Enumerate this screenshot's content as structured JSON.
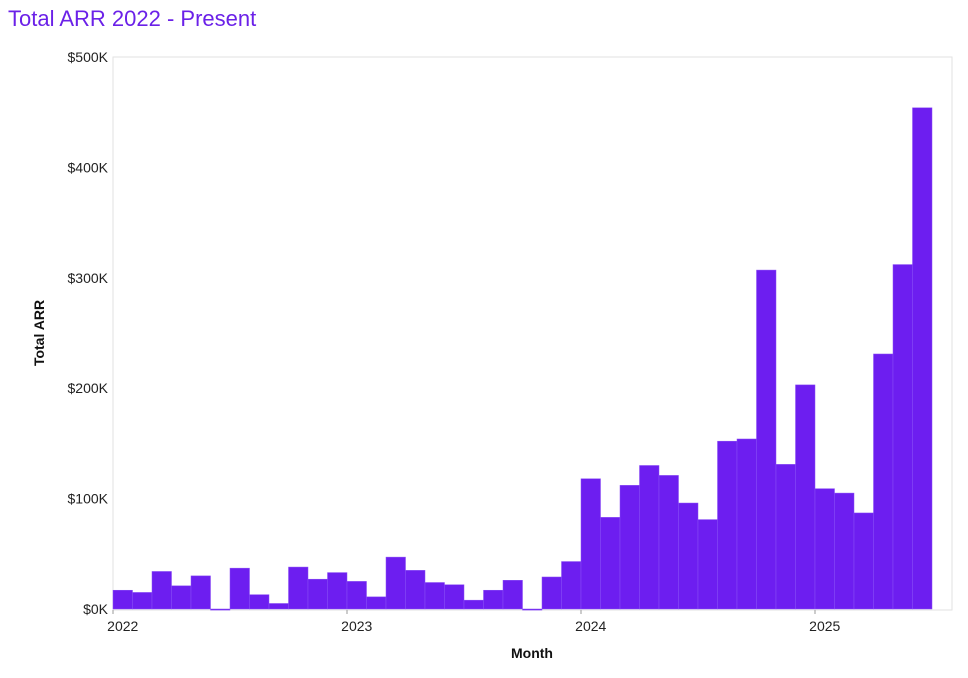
{
  "chart_data": {
    "type": "bar",
    "title": "Total ARR 2022 - Present",
    "xlabel": "Month",
    "ylabel": "Total ARR",
    "ylim": [
      0,
      500000
    ],
    "x_start": "2022-01",
    "x_end": "2025-07",
    "y_ticks": [
      {
        "value": 0,
        "label": "$0K"
      },
      {
        "value": 100000,
        "label": "$100K"
      },
      {
        "value": 200000,
        "label": "$200K"
      },
      {
        "value": 300000,
        "label": "$300K"
      },
      {
        "value": 400000,
        "label": "$400K"
      },
      {
        "value": 500000,
        "label": "$500K"
      }
    ],
    "x_ticks": [
      {
        "value": "2022-01",
        "label": "2022"
      },
      {
        "value": "2023-01",
        "label": "2023"
      },
      {
        "value": "2024-01",
        "label": "2024"
      },
      {
        "value": "2025-01",
        "label": "2025"
      }
    ],
    "bar_color": "#6d1ef0",
    "grid": false,
    "categories": [
      "2022-01",
      "2022-02",
      "2022-03",
      "2022-04",
      "2022-05",
      "2022-06",
      "2022-07",
      "2022-08",
      "2022-09",
      "2022-10",
      "2022-11",
      "2022-12",
      "2023-01",
      "2023-02",
      "2023-03",
      "2023-04",
      "2023-05",
      "2023-06",
      "2023-07",
      "2023-08",
      "2023-09",
      "2023-10",
      "2023-11",
      "2023-12",
      "2024-01",
      "2024-02",
      "2024-03",
      "2024-04",
      "2024-05",
      "2024-06",
      "2024-07",
      "2024-08",
      "2024-09",
      "2024-10",
      "2024-11",
      "2024-12",
      "2025-01",
      "2025-02",
      "2025-03",
      "2025-04",
      "2025-05",
      "2025-06"
    ],
    "values": [
      17000,
      15000,
      34000,
      21000,
      30000,
      -1000,
      37000,
      13000,
      5000,
      38000,
      27000,
      33000,
      25000,
      11000,
      47000,
      35000,
      24000,
      22000,
      8000,
      17000,
      26000,
      -1000,
      29000,
      43000,
      118000,
      83000,
      112000,
      130000,
      121000,
      96000,
      81000,
      152000,
      154000,
      307000,
      131000,
      203000,
      109000,
      105000,
      87000,
      231000,
      312000,
      454000
    ]
  }
}
